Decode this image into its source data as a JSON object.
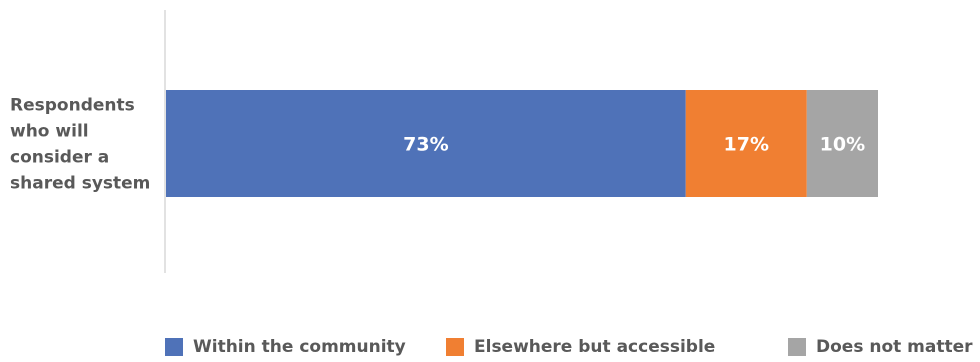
{
  "chart_data": {
    "type": "bar",
    "orientation": "horizontal",
    "stacked": true,
    "categories": [
      "Respondents who will consider a shared system"
    ],
    "category_label_lines": [
      "Respondents",
      "who will",
      "consider a",
      "shared system"
    ],
    "series": [
      {
        "name": "Within the community",
        "values": [
          73
        ],
        "label": "73%",
        "color": "#4F72B8"
      },
      {
        "name": "Elsewhere but accessible",
        "values": [
          17
        ],
        "label": "17%",
        "color": "#F07F32"
      },
      {
        "name": "Does not matter",
        "values": [
          10
        ],
        "label": "10%",
        "color": "#A5A5A5"
      }
    ],
    "unit": "%",
    "xlim": [
      0,
      100
    ],
    "legend_position": "bottom",
    "grid": false
  },
  "colors": {
    "axis": "#D9D9D9",
    "label_text": "#595959",
    "bar_text": "#FFFFFF"
  }
}
